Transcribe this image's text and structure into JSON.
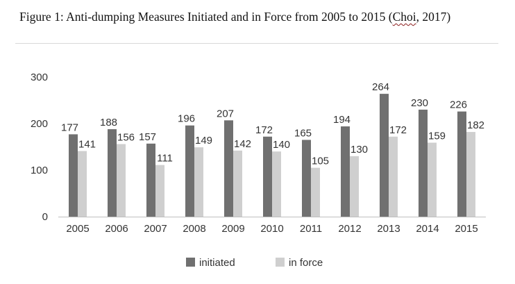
{
  "caption": {
    "prefix": "Figure 1: Anti-dumping Measures Initiated and in Force from 2005 to 2015 (",
    "author": "Choi",
    "suffix": ", 2017)"
  },
  "colors": {
    "initiated": "#707070",
    "in_force": "#cfcfcf",
    "axis": "#bfbfbf"
  },
  "chart_data": {
    "type": "bar",
    "categories": [
      "2005",
      "2006",
      "2007",
      "2008",
      "2009",
      "2010",
      "2011",
      "2012",
      "2013",
      "2014",
      "2015"
    ],
    "series": [
      {
        "name": "initiated",
        "values": [
          177,
          188,
          157,
          196,
          207,
          172,
          165,
          194,
          264,
          230,
          226
        ]
      },
      {
        "name": "in force",
        "values": [
          141,
          156,
          111,
          149,
          142,
          140,
          105,
          130,
          172,
          159,
          182
        ]
      }
    ],
    "y_ticks": [
      0,
      100,
      200,
      300
    ],
    "ylim": [
      0,
      300
    ],
    "title": "",
    "xlabel": "",
    "ylabel": "",
    "legend_position": "bottom",
    "grid": false
  }
}
